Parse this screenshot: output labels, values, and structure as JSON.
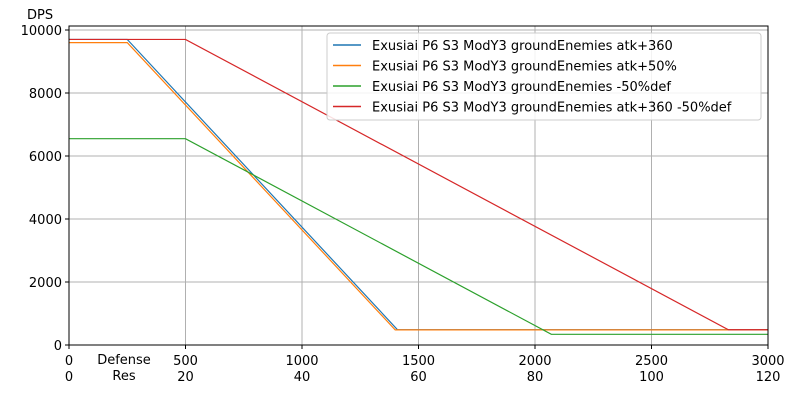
{
  "chart_data": {
    "type": "line",
    "title": "",
    "ylabel": "DPS",
    "xlabel": "Defense",
    "xlabel2": "Res",
    "xlim": [
      0,
      3000
    ],
    "ylim": [
      0,
      10100
    ],
    "xticks": [
      0,
      500,
      1000,
      1500,
      2000,
      2500,
      3000
    ],
    "xticks2": [
      0,
      20,
      40,
      60,
      80,
      100,
      120
    ],
    "yticks": [
      0,
      2000,
      4000,
      6000,
      8000,
      10000
    ],
    "grid": true,
    "legend_position": "top-right",
    "series": [
      {
        "name": "Exusiai P6 S3 ModY3 groundEnemies atk+360",
        "color": "#1f77b4",
        "x": [
          0,
          250,
          1410,
          3000
        ],
        "y": [
          9700,
          9700,
          485,
          485
        ]
      },
      {
        "name": "Exusiai P6 S3 ModY3 groundEnemies atk+50%",
        "color": "#ff7f0e",
        "x": [
          0,
          250,
          1400,
          3000
        ],
        "y": [
          9600,
          9600,
          480,
          480
        ]
      },
      {
        "name": "Exusiai P6 S3 ModY3 groundEnemies -50%def",
        "color": "#2ca02c",
        "x": [
          0,
          500,
          2070,
          3000
        ],
        "y": [
          6550,
          6550,
          340,
          340
        ]
      },
      {
        "name": "Exusiai P6 S3 ModY3 groundEnemies atk+360 -50%def",
        "color": "#d62728",
        "x": [
          0,
          500,
          2830,
          3000
        ],
        "y": [
          9700,
          9700,
          485,
          485
        ]
      }
    ]
  }
}
